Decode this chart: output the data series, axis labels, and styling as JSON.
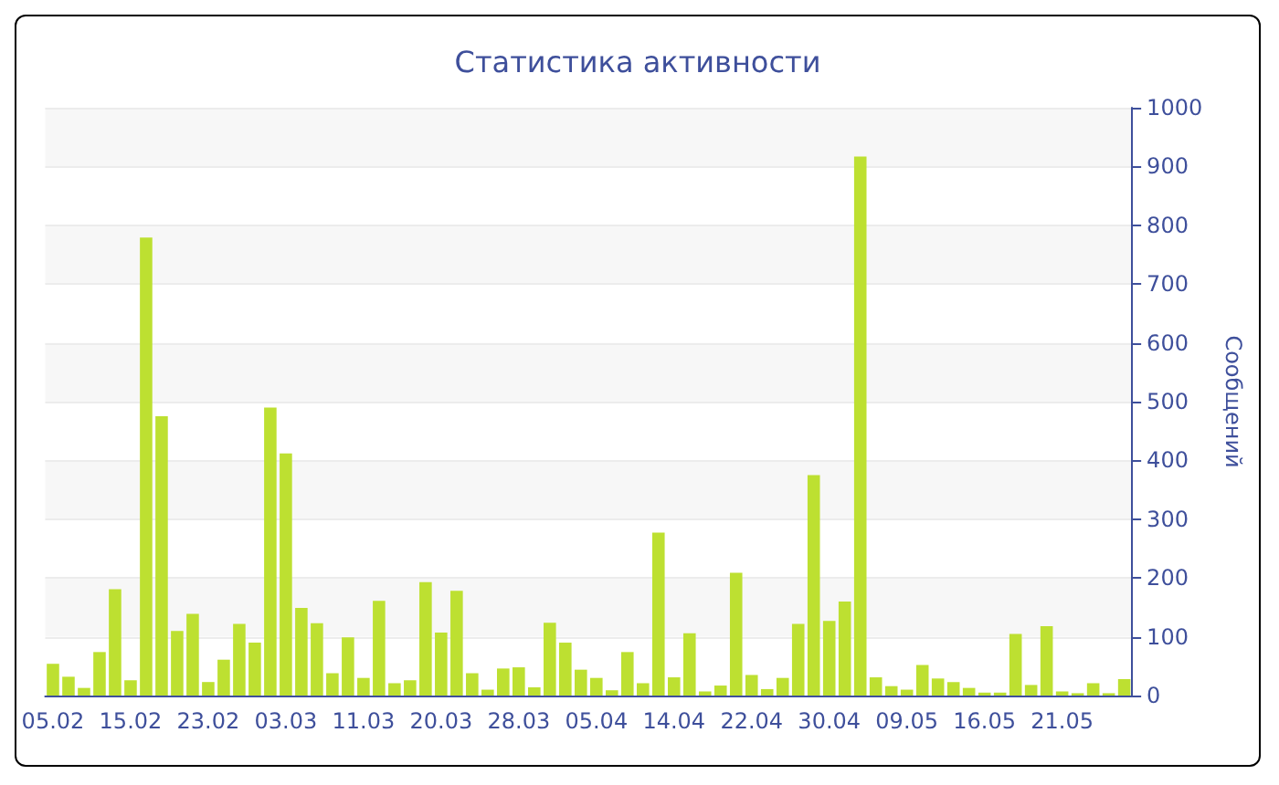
{
  "chart_data": {
    "type": "bar",
    "title": "Статистика активности",
    "ylabel": "Сообщений",
    "categories": [
      "05.02",
      null,
      null,
      null,
      null,
      "15.02",
      null,
      null,
      null,
      null,
      "23.02",
      null,
      null,
      null,
      null,
      "03.03",
      null,
      null,
      null,
      null,
      "11.03",
      null,
      null,
      null,
      null,
      "20.03",
      null,
      null,
      null,
      null,
      "28.03",
      null,
      null,
      null,
      null,
      "05.04",
      null,
      null,
      null,
      null,
      "14.04",
      null,
      null,
      null,
      null,
      "22.04",
      null,
      null,
      null,
      null,
      "30.04",
      null,
      null,
      null,
      null,
      "09.05",
      null,
      null,
      null,
      null,
      "16.05",
      null,
      null,
      null,
      null,
      "21.05",
      null,
      null,
      null,
      null
    ],
    "values": [
      54,
      32,
      13,
      74,
      181,
      26,
      779,
      475,
      110,
      139,
      23,
      61,
      122,
      90,
      490,
      412,
      149,
      123,
      38,
      99,
      30,
      161,
      21,
      26,
      193,
      107,
      178,
      38,
      10,
      46,
      48,
      14,
      124,
      90,
      44,
      30,
      9,
      74,
      21,
      277,
      31,
      106,
      7,
      17,
      209,
      35,
      11,
      30,
      122,
      375,
      127,
      160,
      917,
      31,
      16,
      10,
      52,
      29,
      23,
      13,
      5,
      5,
      105,
      18,
      118,
      7,
      4,
      21,
      4,
      28
    ],
    "color": "#bde031",
    "ylim": [
      0,
      1000
    ],
    "yticks": [
      0,
      100,
      200,
      300,
      400,
      500,
      600,
      700,
      800,
      900,
      1000
    ],
    "grid": "y"
  }
}
